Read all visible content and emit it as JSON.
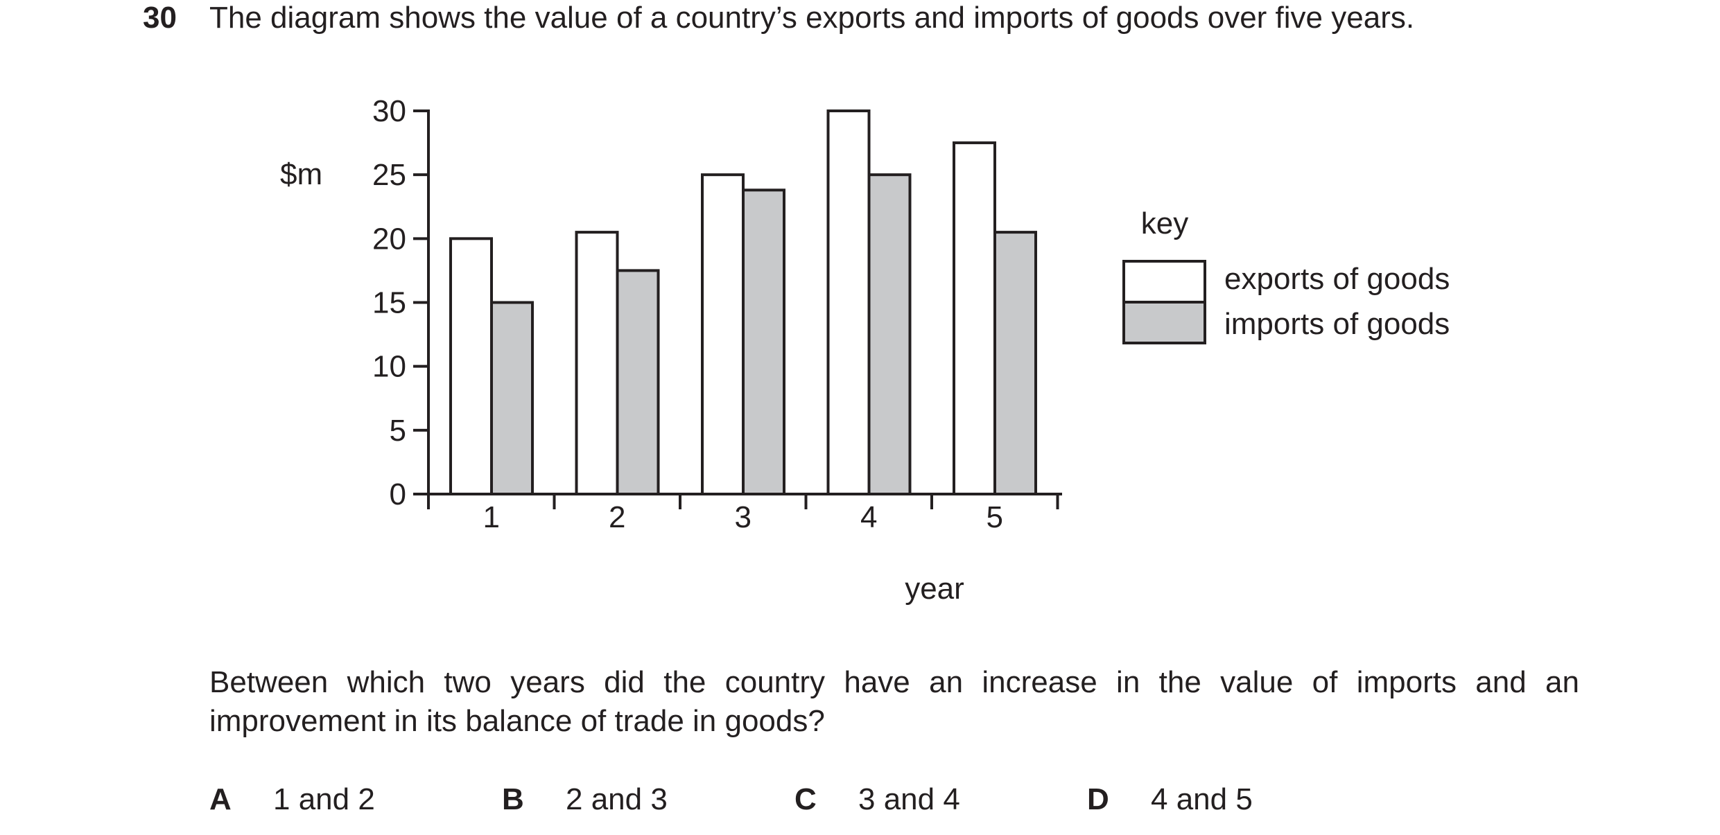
{
  "question": {
    "number": "30",
    "text": "The diagram shows the value of a country’s exports and imports of goods over five years.",
    "prompt": "Between which two years did the country have an increase in the value of imports and an improvement in its balance of trade in goods?"
  },
  "options": [
    {
      "letter": "A",
      "text": "1 and 2"
    },
    {
      "letter": "B",
      "text": "2 and 3"
    },
    {
      "letter": "C",
      "text": "3 and 4"
    },
    {
      "letter": "D",
      "text": "4 and 5"
    }
  ],
  "colors": {
    "exports_fill": "#ffffff",
    "imports_fill": "#c8c9cb",
    "stroke": "#231f20"
  },
  "chart_data": {
    "type": "bar",
    "title": "",
    "xlabel": "year",
    "ylabel": "$m",
    "categories": [
      "1",
      "2",
      "3",
      "4",
      "5"
    ],
    "ylim": [
      0,
      30
    ],
    "yticks": [
      "0",
      "5",
      "10",
      "15",
      "20",
      "25",
      "30"
    ],
    "grid": false,
    "legend": {
      "title": "key",
      "placement": "right"
    },
    "series": [
      {
        "name": "exports of goods",
        "values": [
          20,
          20.5,
          25,
          30,
          27.5
        ]
      },
      {
        "name": "imports of goods",
        "values": [
          15,
          17.5,
          23.8,
          25,
          20.5
        ]
      }
    ]
  }
}
